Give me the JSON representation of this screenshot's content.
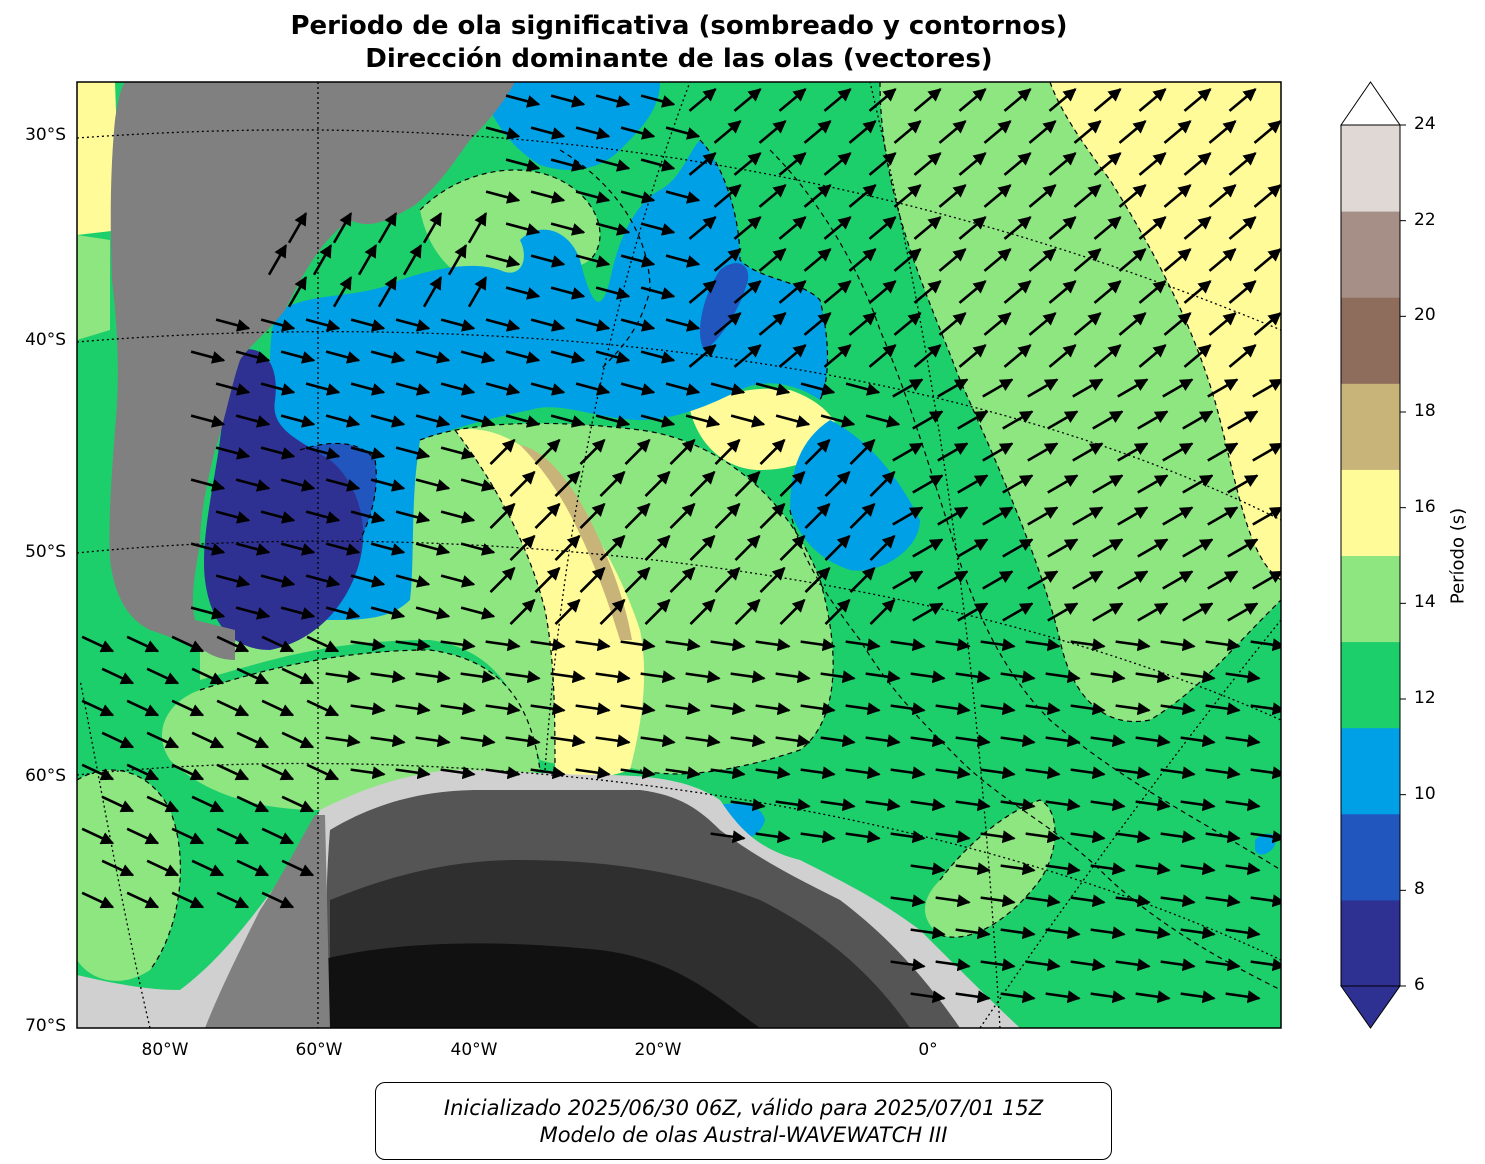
{
  "title": {
    "line1": "Periodo de ola significativa (sombreado y contornos)",
    "line2": "Dirección dominante de las olas (vectores)"
  },
  "lat_ticks": [
    "30°S",
    "40°S",
    "50°S",
    "60°S",
    "70°S"
  ],
  "lon_ticks": [
    "80°W",
    "60°W",
    "40°W",
    "20°W",
    "0°"
  ],
  "colorbar": {
    "label": "Período (s)",
    "ticks": [
      "6",
      "8",
      "10",
      "12",
      "14",
      "16",
      "18",
      "20",
      "22",
      "24"
    ],
    "colors": [
      "#2e3192",
      "#2056bd",
      "#00a0e6",
      "#1dcf6b",
      "#8ee681",
      "#fffb99",
      "#c8b478",
      "#8e6d5c",
      "#a68f86",
      "#e0d8d5"
    ],
    "over_color": "#ffffff",
    "under_color": "#2e3192"
  },
  "land_color": "#808080",
  "caption": {
    "line1": "Inicializado 2025/06/30 06Z, válido para 2025/07/01 15Z",
    "line2": "Modelo de olas Austral-WAVEWATCH III"
  }
}
